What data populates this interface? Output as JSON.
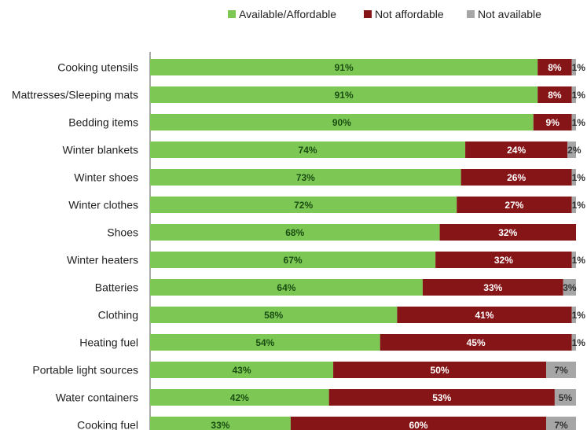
{
  "chart_data": {
    "type": "bar",
    "orientation": "horizontal",
    "stacked": true,
    "title": "",
    "xlabel": "",
    "ylabel": "",
    "xlim": [
      0,
      100
    ],
    "grid": false,
    "legend_position": "top",
    "categories": [
      "Cooking utensils",
      "Mattresses/Sleeping mats",
      "Bedding items",
      "Winter blankets",
      "Winter shoes",
      "Winter clothes",
      "Shoes",
      "Winter heaters",
      "Batteries",
      "Clothing",
      "Heating fuel",
      "Portable light sources",
      "Water containers",
      "Cooking fuel"
    ],
    "series": [
      {
        "name": "Available/Affordable",
        "color": "#7dc855",
        "label_color": "#1a4d12",
        "values": [
          91,
          91,
          90,
          74,
          73,
          72,
          68,
          67,
          64,
          58,
          54,
          43,
          42,
          33
        ],
        "labels": [
          "91%",
          "91%",
          "90%",
          "74%",
          "73%",
          "72%",
          "68%",
          "67%",
          "64%",
          "58%",
          "54%",
          "43%",
          "42%",
          "33%"
        ]
      },
      {
        "name": "Not affordable",
        "color": "#861517",
        "label_color": "#ffffff",
        "values": [
          8,
          8,
          9,
          24,
          26,
          27,
          32,
          32,
          33,
          41,
          45,
          50,
          53,
          60
        ],
        "labels": [
          "8%",
          "8%",
          "9%",
          "24%",
          "26%",
          "27%",
          "32%",
          "32%",
          "33%",
          "41%",
          "45%",
          "50%",
          "53%",
          "60%"
        ]
      },
      {
        "name": "Not available",
        "color": "#a6a6a6",
        "label_color": "#333333",
        "values": [
          1,
          1,
          1,
          2,
          1,
          1,
          0,
          1,
          3,
          1,
          1,
          7,
          5,
          7
        ],
        "labels": [
          "1%",
          "1%",
          "1%",
          "2%",
          "1%",
          "1%",
          "",
          "1%",
          "3%",
          "1%",
          "1%",
          "7%",
          "5%",
          "7%"
        ]
      }
    ]
  }
}
